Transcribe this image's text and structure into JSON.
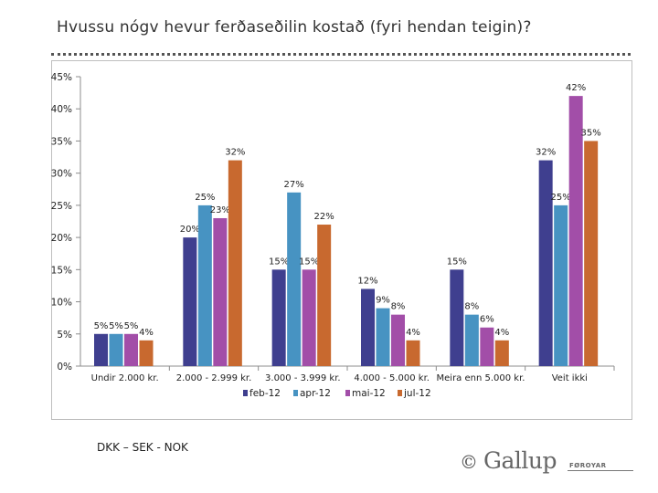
{
  "page": {
    "title": "Hvussu nógv hevur ferðaseðilin kostað (fyri hendan teigin)?",
    "footnote": "DKK – SEK - NOK",
    "logo": {
      "copyright": "©",
      "brand": "Gallup",
      "sub": "FØROYAR"
    }
  },
  "colors": {
    "feb-12": "#3f3f8f",
    "apr-12": "#4793c2",
    "mai-12": "#a24ea8",
    "jul-12": "#c8692f"
  },
  "chart_data": {
    "type": "bar",
    "title": "Hvussu nógv hevur ferðaseðilin kostað (fyri hendan teigin)?",
    "categories": [
      "Undir 2.000 kr.",
      "2.000 - 2.999 kr.",
      "3.000 - 3.999 kr.",
      "4.000 - 5.000 kr.",
      "Meira enn 5.000 kr.",
      "Veit ikki"
    ],
    "series": [
      {
        "name": "feb-12",
        "values": [
          5,
          20,
          15,
          12,
          15,
          32
        ]
      },
      {
        "name": "apr-12",
        "values": [
          5,
          25,
          27,
          9,
          8,
          25
        ]
      },
      {
        "name": "mai-12",
        "values": [
          5,
          23,
          15,
          8,
          6,
          42
        ]
      },
      {
        "name": "jul-12",
        "values": [
          4,
          32,
          22,
          4,
          4,
          35
        ]
      }
    ],
    "data_labels": [
      [
        "5%",
        "20%",
        "15%",
        "12%",
        "15%",
        "32%"
      ],
      [
        "5%",
        "25%",
        "27%",
        "9%",
        "8%",
        "25%"
      ],
      [
        "5%",
        "23%",
        "15%",
        "8%",
        "6%",
        "42%"
      ],
      [
        "4%",
        "32%",
        "22%",
        "4%",
        "4%",
        "35%"
      ]
    ],
    "ylim": [
      0,
      45
    ],
    "yticks": [
      "0%",
      "5%",
      "10%",
      "15%",
      "20%",
      "25%",
      "30%",
      "35%",
      "40%",
      "45%"
    ],
    "xlabel": "",
    "ylabel": "",
    "legend": "bottom",
    "grid": false
  }
}
